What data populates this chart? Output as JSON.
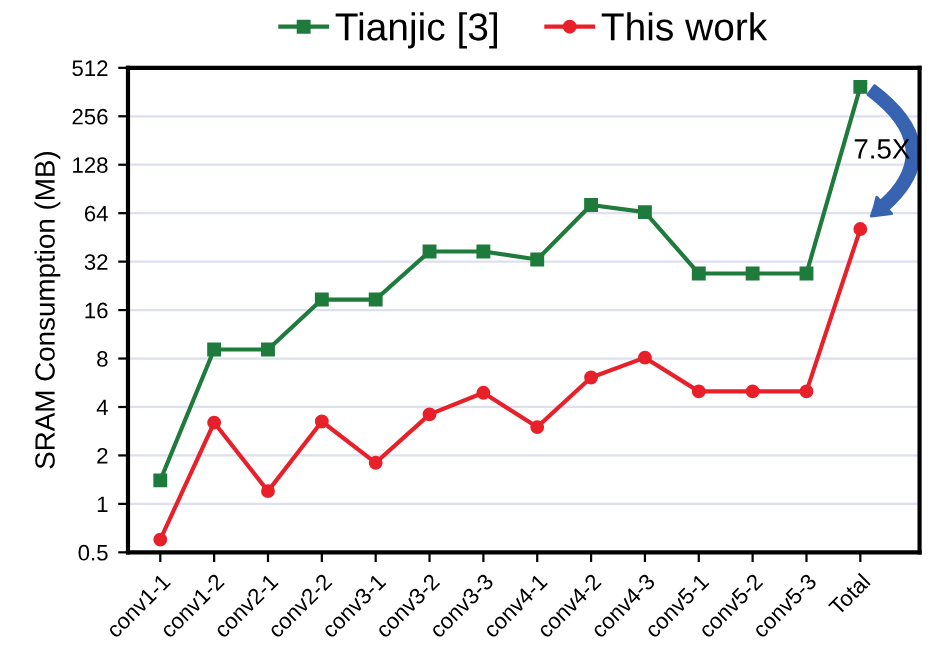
{
  "chart_data": {
    "type": "line",
    "ylabel": "SRAM Consumption (MB)",
    "log": "y",
    "grid": "y",
    "legend": "top",
    "categories": [
      "conv1-1",
      "conv1-2",
      "conv2-1",
      "conv2-2",
      "conv3-1",
      "conv3-2",
      "conv3-3",
      "conv4-1",
      "conv4-2",
      "conv4-3",
      "conv5-1",
      "conv5-2",
      "conv5-3",
      "Total"
    ],
    "series": [
      {
        "name": "Tianjic [3]",
        "color": "#1e7b3c",
        "marker": "square",
        "values": [
          1.4,
          9.1,
          9.1,
          18.6,
          18.6,
          37,
          37,
          33,
          72,
          65,
          27,
          27,
          27,
          390
        ]
      },
      {
        "name": "This work",
        "color": "#e8202a",
        "marker": "circle",
        "values": [
          0.6,
          3.2,
          1.2,
          3.25,
          1.8,
          3.6,
          4.9,
          3.0,
          6.1,
          8.1,
          5.0,
          5.0,
          5.0,
          51
        ]
      }
    ],
    "ylim": [
      0.5,
      512
    ],
    "yticks": [
      0.5,
      1,
      2,
      4,
      8,
      16,
      32,
      64,
      128,
      256,
      512
    ],
    "annotations": [
      "7.5X"
    ]
  }
}
